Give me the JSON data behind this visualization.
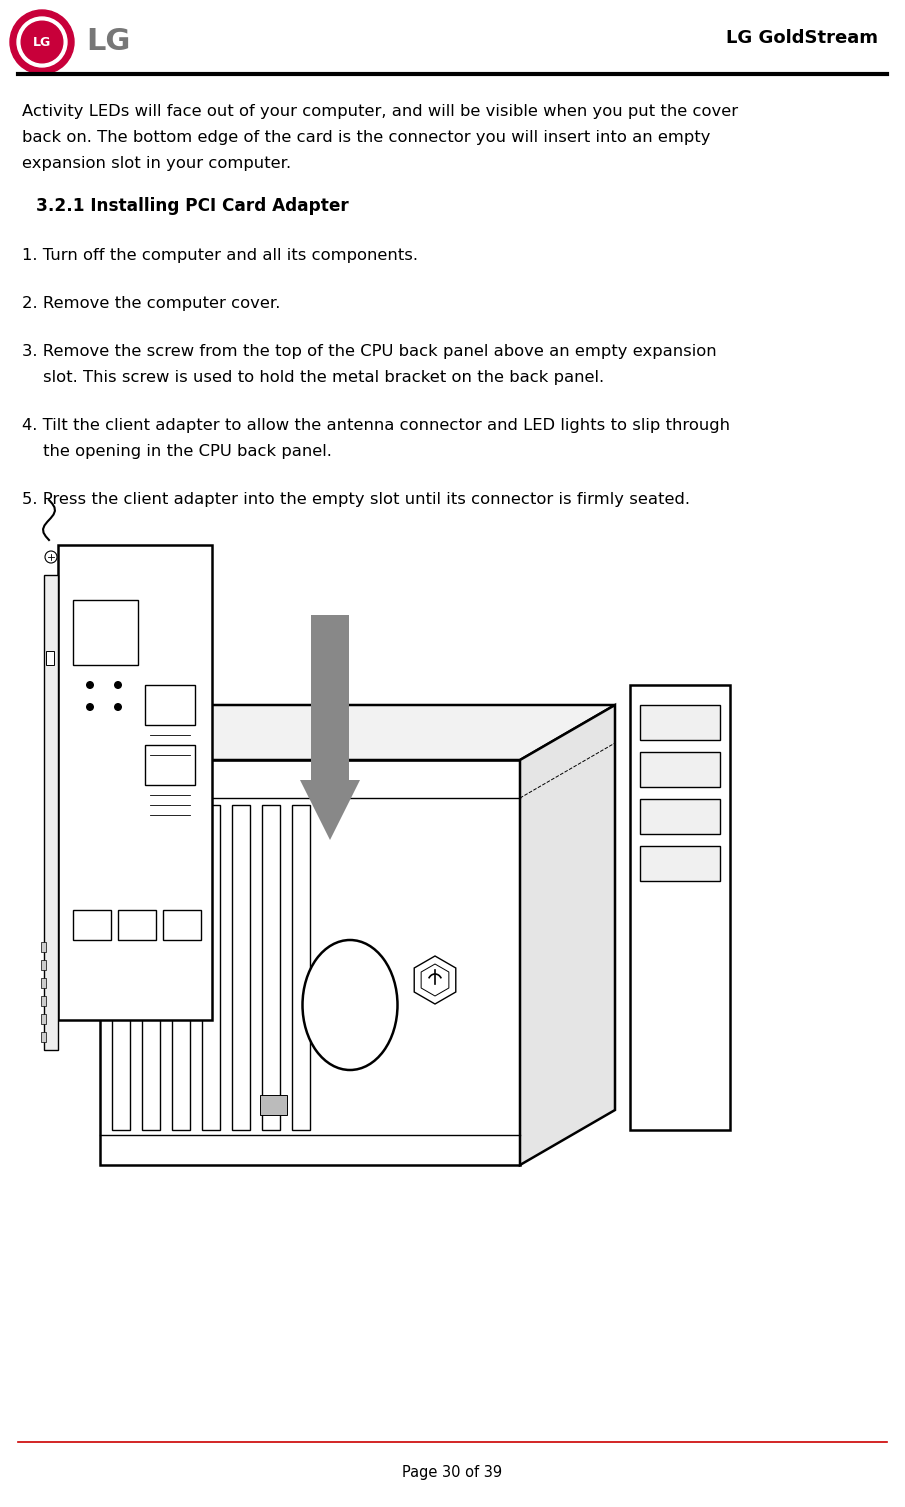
{
  "bg_color": "#ffffff",
  "header_title": "LG GoldStream",
  "footer_text": "Page 30 of 39",
  "body_intro_line1": "Activity LEDs will face out of your computer, and will be visible when you put the cover",
  "body_intro_line2": "back on. The bottom edge of the card is the connector you will insert into an empty",
  "body_intro_line3": "expansion slot in your computer.",
  "section_title": "3.2.1 Installing PCI Card Adapter",
  "step1": "1. Turn off the computer and all its components.",
  "step2": "2. Remove the computer cover.",
  "step3a": "3. Remove the screw from the top of the CPU back panel above an empty expansion",
  "step3b": "    slot. This screw is used to hold the metal bracket on the back panel.",
  "step4a": "4. Tilt the client adapter to allow the antenna connector and LED lights to slip through",
  "step4b": "    the opening in the CPU back panel.",
  "step5": "5. Press the client adapter into the empty slot until its connector is firmly seated.",
  "text_color": "#000000",
  "logo_color": "#c8003a",
  "gray_arrow": "#888888",
  "lw_main": 1.8,
  "lw_thin": 1.0
}
